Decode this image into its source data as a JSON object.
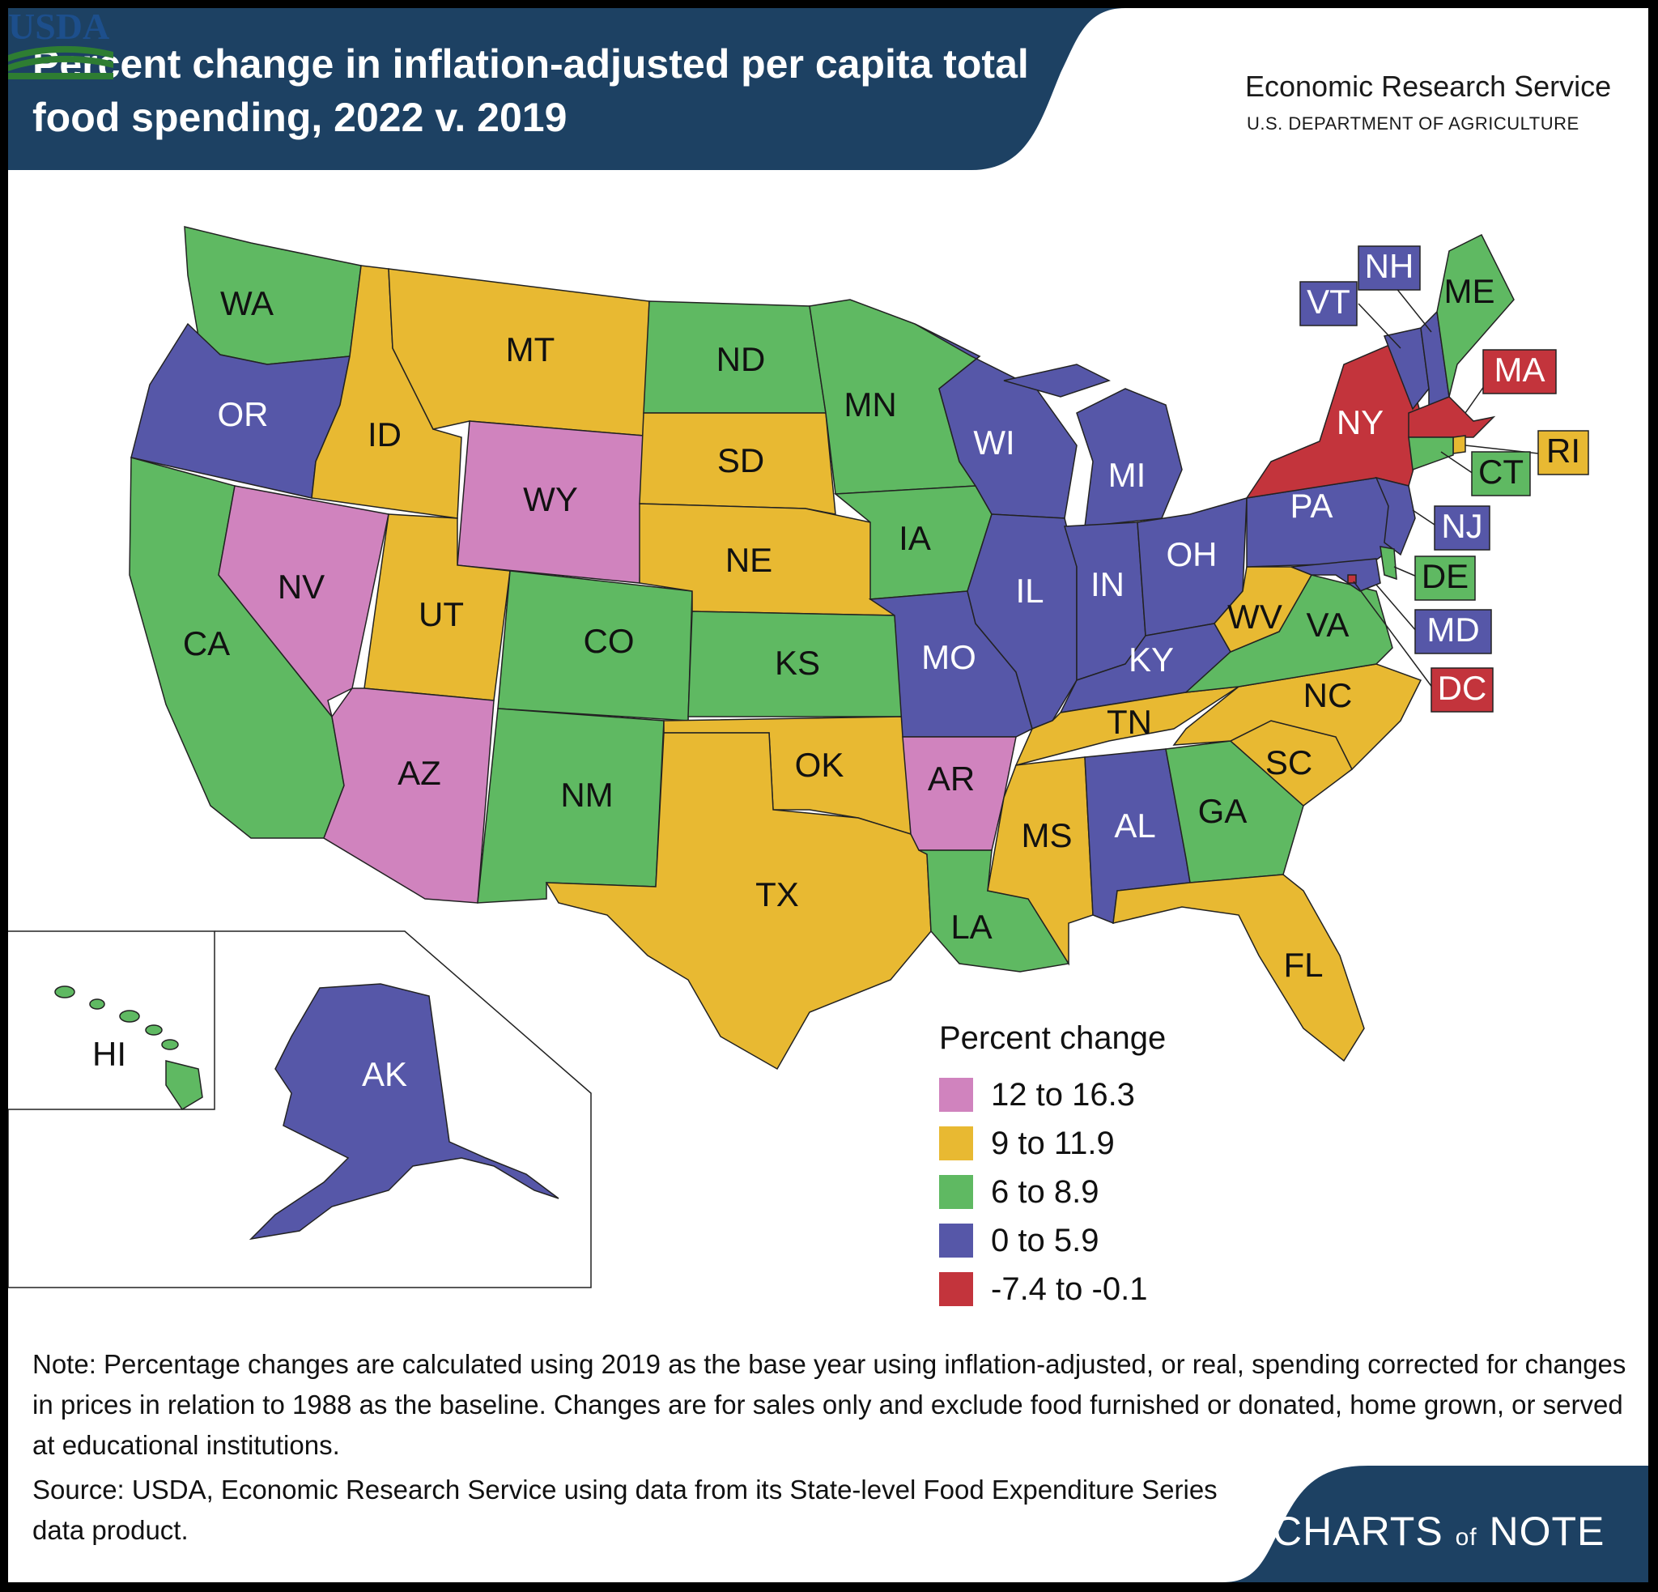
{
  "title": "Percent change in inflation-adjusted per capita total food spending, 2022 v. 2019",
  "agency": {
    "logo_text": "USDA",
    "name": "Economic Research Service",
    "department": "U.S. DEPARTMENT OF AGRICULTURE"
  },
  "colors": {
    "header": "#1d4163",
    "pink": "#d083be",
    "yellow": "#e8b932",
    "green": "#5fb962",
    "purple": "#5657a8",
    "red": "#c3343c"
  },
  "legend": {
    "title": "Percent change",
    "items": [
      {
        "label": "12 to 16.3",
        "color": "#d083be"
      },
      {
        "label": "9 to 11.9",
        "color": "#e8b932"
      },
      {
        "label": "6 to 8.9",
        "color": "#5fb962"
      },
      {
        "label": "0 to 5.9",
        "color": "#5657a8"
      },
      {
        "label": "-7.4 to -0.1",
        "color": "#c3343c"
      }
    ]
  },
  "states": [
    {
      "code": "WA",
      "category": "6 to 8.9"
    },
    {
      "code": "OR",
      "category": "0 to 5.9"
    },
    {
      "code": "CA",
      "category": "6 to 8.9"
    },
    {
      "code": "ID",
      "category": "9 to 11.9"
    },
    {
      "code": "NV",
      "category": "12 to 16.3"
    },
    {
      "code": "MT",
      "category": "9 to 11.9"
    },
    {
      "code": "WY",
      "category": "12 to 16.3"
    },
    {
      "code": "UT",
      "category": "9 to 11.9"
    },
    {
      "code": "AZ",
      "category": "12 to 16.3"
    },
    {
      "code": "CO",
      "category": "6 to 8.9"
    },
    {
      "code": "NM",
      "category": "6 to 8.9"
    },
    {
      "code": "ND",
      "category": "6 to 8.9"
    },
    {
      "code": "SD",
      "category": "9 to 11.9"
    },
    {
      "code": "NE",
      "category": "9 to 11.9"
    },
    {
      "code": "KS",
      "category": "6 to 8.9"
    },
    {
      "code": "OK",
      "category": "9 to 11.9"
    },
    {
      "code": "TX",
      "category": "9 to 11.9"
    },
    {
      "code": "MN",
      "category": "6 to 8.9"
    },
    {
      "code": "IA",
      "category": "6 to 8.9"
    },
    {
      "code": "MO",
      "category": "0 to 5.9"
    },
    {
      "code": "AR",
      "category": "12 to 16.3"
    },
    {
      "code": "LA",
      "category": "6 to 8.9"
    },
    {
      "code": "WI",
      "category": "0 to 5.9"
    },
    {
      "code": "IL",
      "category": "0 to 5.9"
    },
    {
      "code": "MI",
      "category": "0 to 5.9"
    },
    {
      "code": "IN",
      "category": "0 to 5.9"
    },
    {
      "code": "OH",
      "category": "0 to 5.9"
    },
    {
      "code": "KY",
      "category": "0 to 5.9"
    },
    {
      "code": "TN",
      "category": "9 to 11.9"
    },
    {
      "code": "MS",
      "category": "9 to 11.9"
    },
    {
      "code": "AL",
      "category": "0 to 5.9"
    },
    {
      "code": "GA",
      "category": "6 to 8.9"
    },
    {
      "code": "FL",
      "category": "9 to 11.9"
    },
    {
      "code": "SC",
      "category": "9 to 11.9"
    },
    {
      "code": "NC",
      "category": "9 to 11.9"
    },
    {
      "code": "VA",
      "category": "6 to 8.9"
    },
    {
      "code": "WV",
      "category": "9 to 11.9"
    },
    {
      "code": "PA",
      "category": "0 to 5.9"
    },
    {
      "code": "NY",
      "category": "-7.4 to -0.1"
    },
    {
      "code": "VT",
      "category": "0 to 5.9"
    },
    {
      "code": "NH",
      "category": "0 to 5.9"
    },
    {
      "code": "ME",
      "category": "6 to 8.9"
    },
    {
      "code": "MA",
      "category": "-7.4 to -0.1"
    },
    {
      "code": "RI",
      "category": "9 to 11.9"
    },
    {
      "code": "CT",
      "category": "6 to 8.9"
    },
    {
      "code": "NJ",
      "category": "0 to 5.9"
    },
    {
      "code": "DE",
      "category": "6 to 8.9"
    },
    {
      "code": "MD",
      "category": "0 to 5.9"
    },
    {
      "code": "DC",
      "category": "-7.4 to -0.1"
    },
    {
      "code": "AK",
      "category": "0 to 5.9"
    },
    {
      "code": "HI",
      "category": "6 to 8.9"
    }
  ],
  "note": "Note: Percentage changes are calculated using 2019 as the base year using inflation-adjusted, or real, spending corrected for changes in prices in relation to 1988 as the baseline. Changes are for sales only and exclude food furnished or donated, home grown, or served at educational institutions.",
  "source": "Source: USDA, Economic Research Service using data from its State-level Food Expenditure Series data product.",
  "branding": {
    "prefix": "CHARTS",
    "of": "of",
    "suffix": "NOTE"
  }
}
